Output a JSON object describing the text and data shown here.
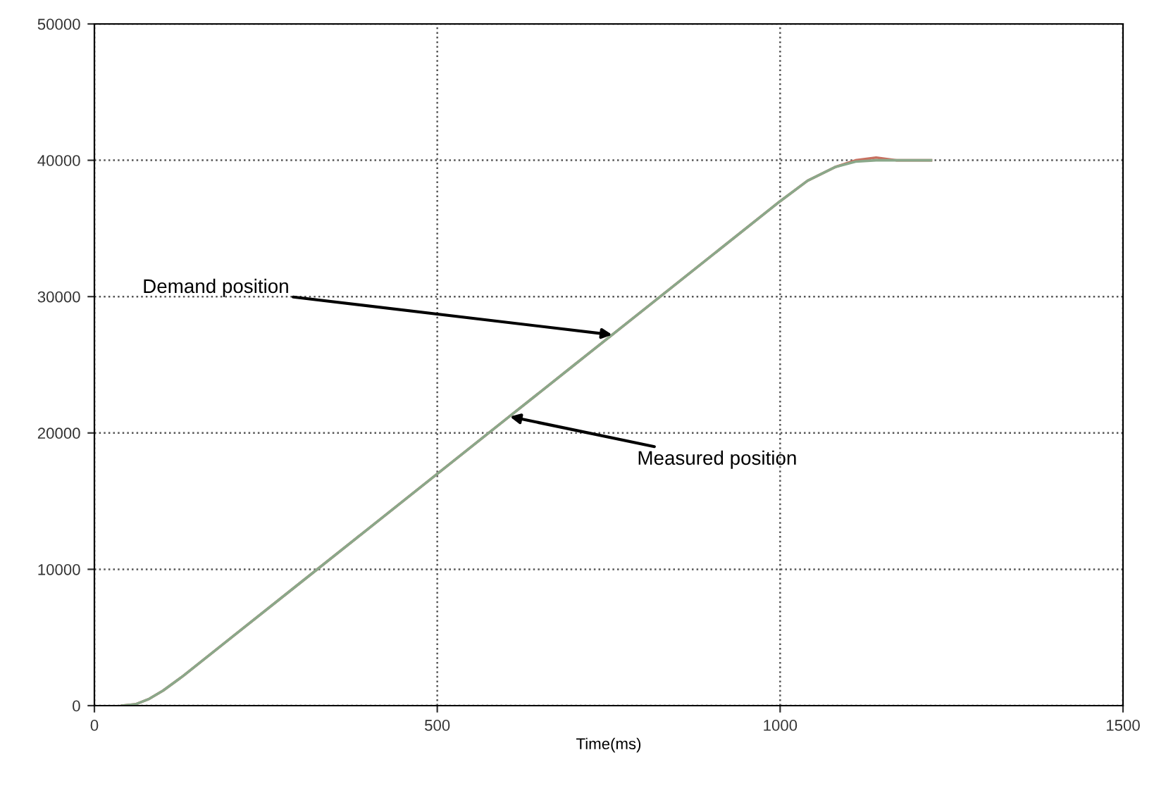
{
  "chart_data": {
    "type": "line",
    "xlabel": "Time(ms)",
    "xlim": [
      0,
      1500
    ],
    "xticks": [
      0,
      500,
      1000,
      1500
    ],
    "ylim": [
      0,
      50000
    ],
    "yticks": [
      0,
      10000,
      20000,
      30000,
      40000,
      50000
    ],
    "grid": true,
    "line_style": "solid",
    "marker": "none",
    "series": [
      {
        "color": "#c87060",
        "x": [
          40,
          60,
          80,
          100,
          130,
          150,
          200,
          300,
          400,
          500,
          600,
          700,
          800,
          900,
          1000,
          1040,
          1080,
          1110,
          1140,
          1170,
          1220
        ],
        "values": [
          0,
          100,
          500,
          1100,
          2200,
          3000,
          5000,
          9000,
          13000,
          17000,
          21000,
          25000,
          29000,
          33000,
          37000,
          38500,
          39500,
          40000,
          40200,
          40000,
          40000
        ]
      },
      {
        "color": "#8aa88a",
        "x": [
          40,
          60,
          80,
          100,
          130,
          150,
          200,
          300,
          400,
          500,
          600,
          700,
          800,
          900,
          1000,
          1040,
          1080,
          1110,
          1140,
          1170,
          1220
        ],
        "values": [
          0,
          100,
          500,
          1100,
          2200,
          3000,
          5000,
          9000,
          13000,
          17000,
          21000,
          25000,
          29000,
          33000,
          37000,
          38500,
          39500,
          39900,
          40000,
          40000,
          40000
        ]
      }
    ],
    "annotations": [
      {
        "text": "Demand position",
        "x": 755,
        "y": 27200
      },
      {
        "text": "Measured position",
        "x": 606,
        "y": 21200
      }
    ]
  }
}
